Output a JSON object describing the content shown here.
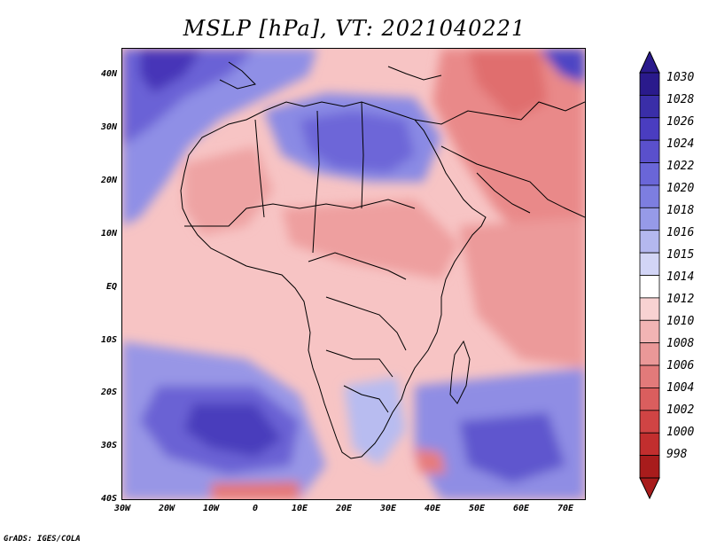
{
  "title": "MSLP [hPa], VT: 2021040221",
  "credit": "GrADS: IGES/COLA",
  "y_axis_labels": [
    "40N",
    "30N",
    "20N",
    "10N",
    "EQ",
    "10S",
    "20S",
    "30S",
    "40S"
  ],
  "x_axis_labels": [
    "30W",
    "20W",
    "10W",
    "0",
    "10E",
    "20E",
    "30E",
    "40E",
    "50E",
    "60E",
    "70E"
  ],
  "colorbar": {
    "labels": [
      "1030",
      "1028",
      "1026",
      "1024",
      "1022",
      "1020",
      "1018",
      "1016",
      "1015",
      "1014",
      "1012",
      "1010",
      "1008",
      "1006",
      "1004",
      "1002",
      "1000",
      "998"
    ],
    "colors": [
      "#2a1a8c",
      "#3a2ea8",
      "#4a3dc0",
      "#5a50cc",
      "#6a66d8",
      "#7d7ee0",
      "#969ae8",
      "#b4b8ef",
      "#d2d5f6",
      "#ffffff",
      "#f8d2d2",
      "#f2b4b4",
      "#ea9898",
      "#e27a7a",
      "#da5e5e",
      "#d04444",
      "#c22e2e",
      "#a81c1c"
    ]
  },
  "map": {
    "lon_range": [
      -30,
      75
    ],
    "lat_range": [
      -40,
      45
    ],
    "variable": "MSLP",
    "units": "hPa",
    "valid_time": "2021040221"
  }
}
